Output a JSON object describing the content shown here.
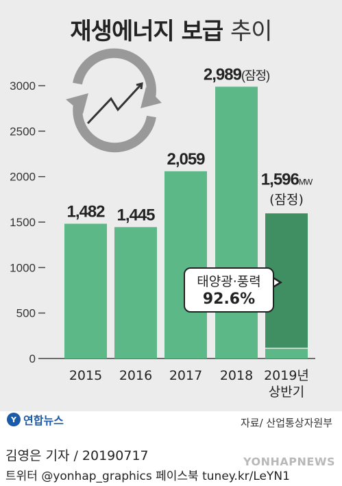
{
  "title_main": "재생에너지 보급",
  "title_sub": "추이",
  "unit": "MW",
  "callout": {
    "label": "태양광·풍력",
    "value": "92.6%"
  },
  "source": "자료/ 산업통상자원부",
  "logo": "연합뉴스",
  "credit": "김영은 기자 / 20190717",
  "sns": "트위터 @yonhap_graphics  페이스북 tuney.kr/LeYN1",
  "watermark": "YONHAPNEWS",
  "colors": {
    "bar": "#5db887",
    "bar_dark": "#3f8f63",
    "bg": "#ececec"
  },
  "chart_data": {
    "type": "bar",
    "categories": [
      "2015",
      "2016",
      "2017",
      "2018",
      "2019년\n상반기"
    ],
    "values": [
      1482,
      1445,
      2059,
      2989,
      1596
    ],
    "value_labels": [
      "1,482",
      "1,445",
      "2,059",
      "2,989",
      "1,596"
    ],
    "value_suffix": [
      "",
      "",
      "",
      "(잠정)",
      "MW"
    ],
    "extra_label": [
      "",
      "",
      "",
      "",
      "(잠정)"
    ],
    "ylim": [
      0,
      3000
    ],
    "yticks": [
      0,
      500,
      1000,
      1500,
      2000,
      2500,
      3000
    ],
    "highlight_share": 0.926,
    "grid": false
  }
}
